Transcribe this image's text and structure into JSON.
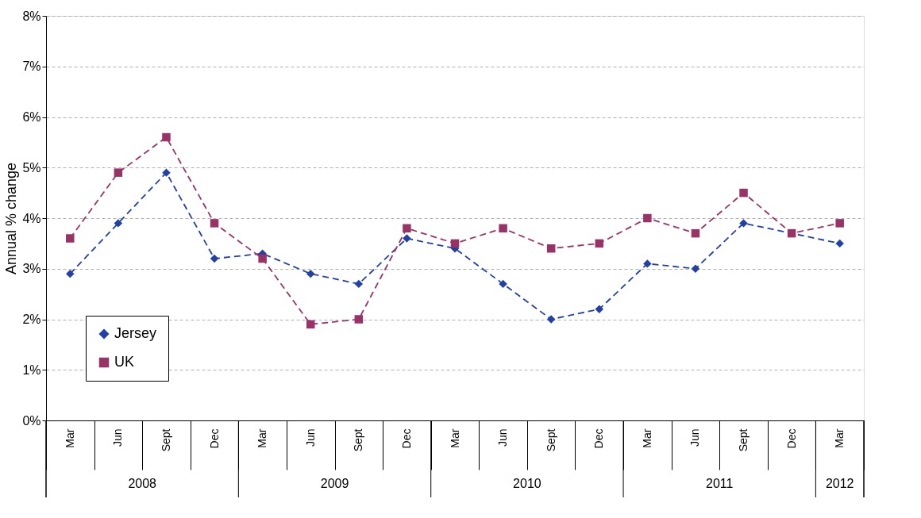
{
  "chart_data": {
    "type": "line",
    "ylabel": "Annual % change",
    "categories": [
      "Mar",
      "Jun",
      "Sept",
      "Dec",
      "Mar",
      "Jun",
      "Sept",
      "Dec",
      "Mar",
      "Jun",
      "Sept",
      "Dec",
      "Mar",
      "Jun",
      "Sept",
      "Dec",
      "Mar"
    ],
    "annotations": [
      "2008",
      "2009",
      "2010",
      "2011",
      "2012"
    ],
    "series": [
      {
        "name": "Jersey",
        "color": "#2140a8",
        "marker": "diamond",
        "values": [
          2.9,
          3.9,
          4.9,
          3.2,
          3.3,
          2.9,
          2.7,
          3.6,
          3.4,
          2.7,
          2.0,
          2.2,
          3.1,
          3.0,
          3.9,
          3.7,
          3.5
        ]
      },
      {
        "name": "UK",
        "color": "#993366",
        "marker": "square",
        "values": [
          3.6,
          4.9,
          5.6,
          3.9,
          3.2,
          1.9,
          2.0,
          3.8,
          3.5,
          3.8,
          3.4,
          3.5,
          4.0,
          3.7,
          4.5,
          3.7,
          3.9
        ]
      }
    ],
    "ylim": [
      0,
      8
    ],
    "yticks": [
      {
        "value": 0,
        "label": "0%"
      },
      {
        "value": 1,
        "label": "1%"
      },
      {
        "value": 2,
        "label": "2%"
      },
      {
        "value": 3,
        "label": "3%"
      },
      {
        "value": 4,
        "label": "4%"
      },
      {
        "value": 5,
        "label": "5%"
      },
      {
        "value": 6,
        "label": "6%"
      },
      {
        "value": 7,
        "label": "7%"
      },
      {
        "value": 8,
        "label": "8%"
      }
    ],
    "grid": "y",
    "legend": "bottom left",
    "line_style": "dashed"
  }
}
